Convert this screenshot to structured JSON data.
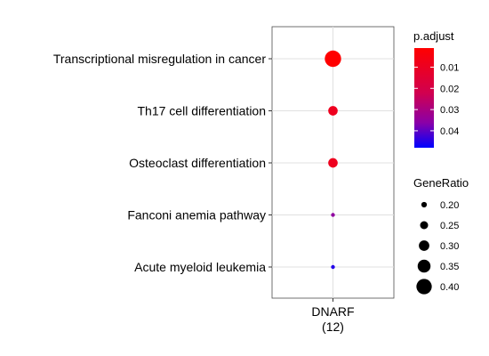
{
  "chart_data": {
    "type": "scatter",
    "subtype": "dotplot",
    "x_category": {
      "name": "DNARF",
      "count_label": "(12)"
    },
    "terms": [
      {
        "label": "Transcriptional misregulation in cancer",
        "p_adjust": 0.001,
        "gene_ratio": 0.42
      },
      {
        "label": "Th17 cell differentiation",
        "p_adjust": 0.009,
        "gene_ratio": 0.28
      },
      {
        "label": "Osteoclast differentiation",
        "p_adjust": 0.009,
        "gene_ratio": 0.28
      },
      {
        "label": "Fanconi anemia pathway",
        "p_adjust": 0.035,
        "gene_ratio": 0.167
      },
      {
        "label": "Acute myeloid leukemia",
        "p_adjust": 0.045,
        "gene_ratio": 0.167
      }
    ],
    "color_legend": {
      "title": "p.adjust",
      "ticks": [
        0.01,
        0.02,
        0.03,
        0.04
      ],
      "tick_labels": [
        "0.01",
        "0.02",
        "0.03",
        "0.04"
      ],
      "range": [
        0.001,
        0.048
      ],
      "low_color": "#ff0000",
      "high_color": "#0000ff"
    },
    "size_legend": {
      "title": "GeneRatio",
      "values": [
        0.2,
        0.25,
        0.3,
        0.35,
        0.4
      ],
      "labels": [
        "0.20",
        "0.25",
        "0.30",
        "0.35",
        "0.40"
      ]
    },
    "grid": true
  }
}
